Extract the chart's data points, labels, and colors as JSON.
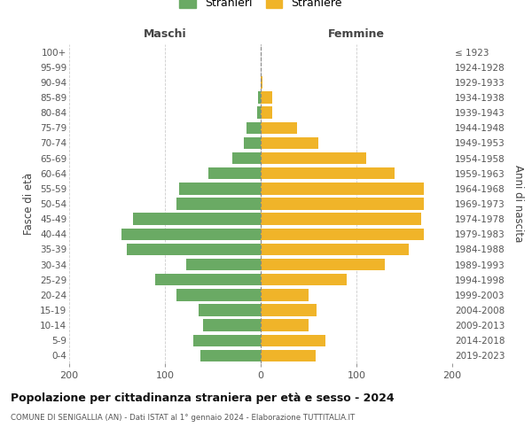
{
  "age_groups": [
    "0-4",
    "5-9",
    "10-14",
    "15-19",
    "20-24",
    "25-29",
    "30-34",
    "35-39",
    "40-44",
    "45-49",
    "50-54",
    "55-59",
    "60-64",
    "65-69",
    "70-74",
    "75-79",
    "80-84",
    "85-89",
    "90-94",
    "95-99",
    "100+"
  ],
  "birth_years": [
    "2019-2023",
    "2014-2018",
    "2009-2013",
    "2004-2008",
    "1999-2003",
    "1994-1998",
    "1989-1993",
    "1984-1988",
    "1979-1983",
    "1974-1978",
    "1969-1973",
    "1964-1968",
    "1959-1963",
    "1954-1958",
    "1949-1953",
    "1944-1948",
    "1939-1943",
    "1934-1938",
    "1929-1933",
    "1924-1928",
    "≤ 1923"
  ],
  "males": [
    63,
    70,
    60,
    65,
    88,
    110,
    78,
    140,
    145,
    133,
    88,
    85,
    55,
    30,
    18,
    15,
    4,
    3,
    0,
    0,
    0
  ],
  "females": [
    57,
    68,
    50,
    58,
    50,
    90,
    130,
    155,
    170,
    168,
    170,
    170,
    140,
    110,
    60,
    38,
    12,
    12,
    2,
    0,
    0
  ],
  "male_color": "#6aaa64",
  "female_color": "#f0b429",
  "background_color": "#ffffff",
  "grid_color": "#cccccc",
  "title": "Popolazione per cittadinanza straniera per età e sesso - 2024",
  "subtitle": "COMUNE DI SENIGALLIA (AN) - Dati ISTAT al 1° gennaio 2024 - Elaborazione TUTTITALIA.IT",
  "left_label": "Maschi",
  "right_label": "Femmine",
  "y_left_label": "Fasce di età",
  "y_right_label": "Anni di nascita",
  "legend_male": "Stranieri",
  "legend_female": "Straniere",
  "xlim": 200,
  "dpi": 100,
  "figsize": [
    6.0,
    5.0
  ]
}
